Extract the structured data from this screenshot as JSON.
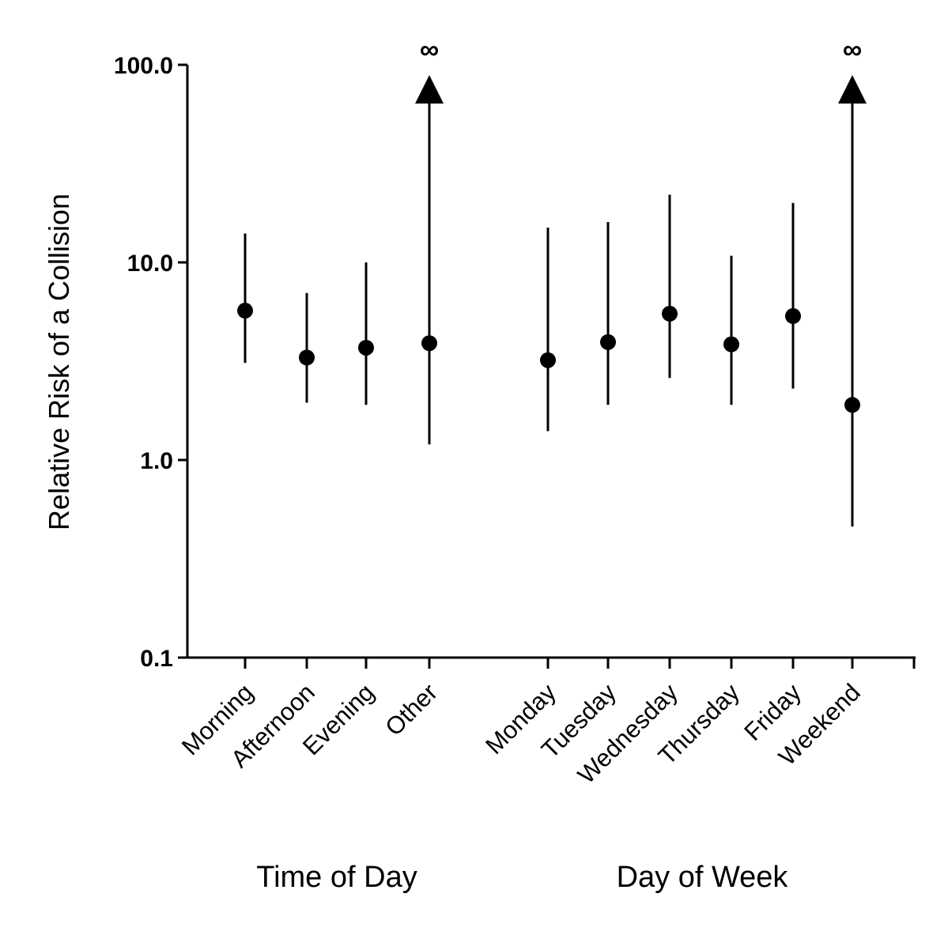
{
  "chart_data": {
    "type": "scatter",
    "ylabel": "Relative Risk of a Collision",
    "yscale": "log",
    "ylim": [
      0.1,
      100
    ],
    "yticks": [
      "0.1",
      "1.0",
      "10.0",
      "100.0"
    ],
    "grid": false,
    "groups": [
      {
        "label": "Time of Day",
        "categories": [
          "Morning",
          "Afternoon",
          "Evening",
          "Other"
        ]
      },
      {
        "label": "Day of Week",
        "categories": [
          "Monday",
          "Tuesday",
          "Wednesday",
          "Thursday",
          "Friday",
          "Weekend"
        ]
      }
    ],
    "points": [
      {
        "category": "Morning",
        "estimate": 5.7,
        "lower": 3.1,
        "upper": 14.0,
        "upper_infinite": false
      },
      {
        "category": "Afternoon",
        "estimate": 3.3,
        "lower": 1.95,
        "upper": 7.0,
        "upper_infinite": false
      },
      {
        "category": "Evening",
        "estimate": 3.7,
        "lower": 1.9,
        "upper": 10.0,
        "upper_infinite": false
      },
      {
        "category": "Other",
        "estimate": 3.9,
        "lower": 1.2,
        "upper": null,
        "upper_infinite": true
      },
      {
        "category": "Monday",
        "estimate": 3.2,
        "lower": 1.4,
        "upper": 15.0,
        "upper_infinite": false
      },
      {
        "category": "Tuesday",
        "estimate": 3.95,
        "lower": 1.9,
        "upper": 16.0,
        "upper_infinite": false
      },
      {
        "category": "Wednesday",
        "estimate": 5.5,
        "lower": 2.6,
        "upper": 22.0,
        "upper_infinite": false
      },
      {
        "category": "Thursday",
        "estimate": 3.85,
        "lower": 1.9,
        "upper": 10.8,
        "upper_infinite": false
      },
      {
        "category": "Friday",
        "estimate": 5.35,
        "lower": 2.3,
        "upper": 20.0,
        "upper_infinite": false
      },
      {
        "category": "Weekend",
        "estimate": 1.9,
        "lower": 0.46,
        "upper": null,
        "upper_infinite": true
      }
    ],
    "infinite_marker": "∞",
    "colors": {
      "marks": "#000000",
      "background": "#ffffff"
    }
  }
}
